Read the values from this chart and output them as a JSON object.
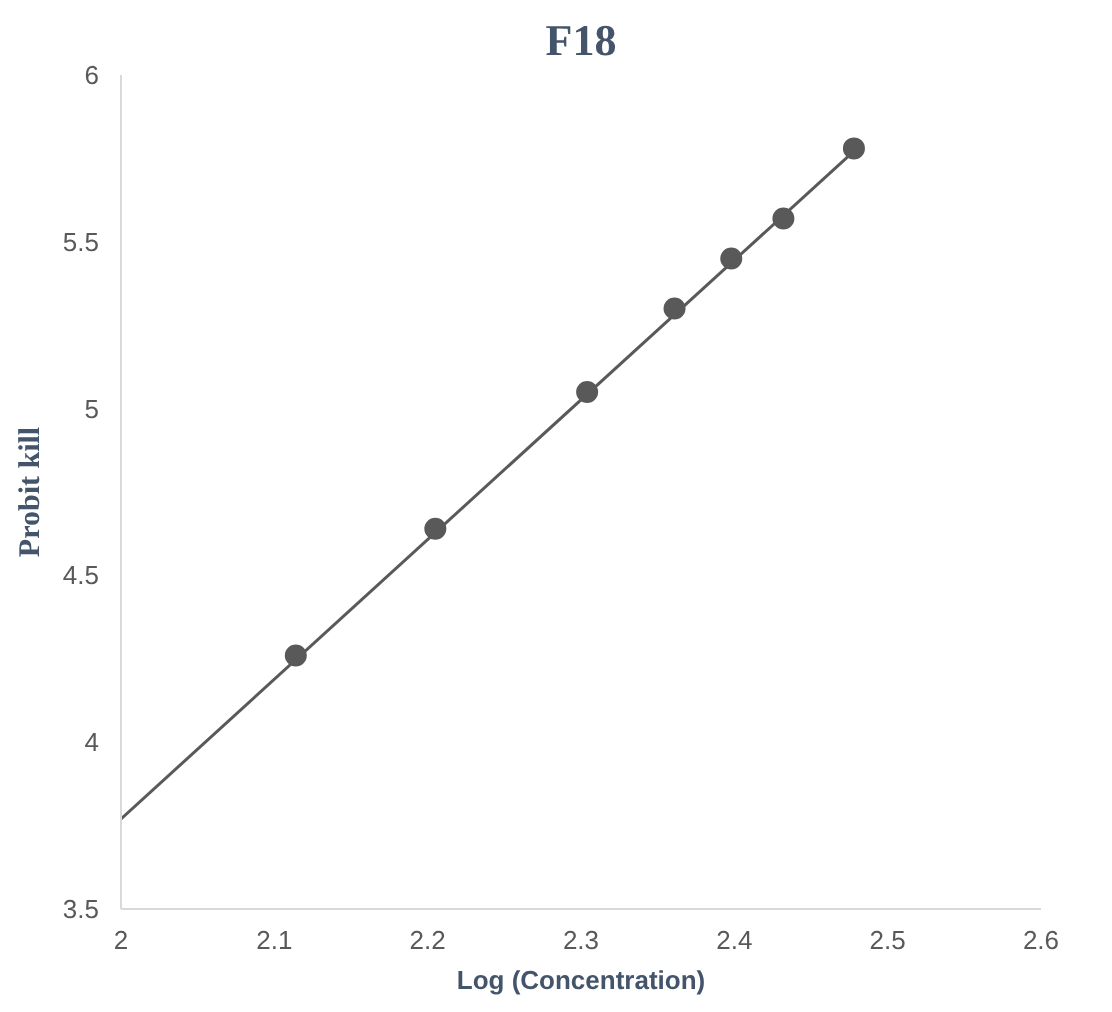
{
  "chart_data": {
    "type": "scatter",
    "title": "F18",
    "xlabel": "Log (Concentration)",
    "ylabel": "Probit kill",
    "x": [
      2.114,
      2.205,
      2.304,
      2.361,
      2.398,
      2.432,
      2.478
    ],
    "series": [
      {
        "color": "#595959",
        "values": [
          4.26,
          4.64,
          5.05,
          5.3,
          5.45,
          5.57,
          5.78
        ],
        "marker": "circle"
      },
      {
        "type": "line",
        "color": "#595959",
        "x": [
          2,
          2.48
        ],
        "values": [
          3.77,
          5.78
        ],
        "line_style": "solid"
      }
    ],
    "xlim": [
      2,
      2.6
    ],
    "xticks": [
      2,
      2.1,
      2.2,
      2.3,
      2.4,
      2.5,
      2.6
    ],
    "ylim": [
      3.5,
      6
    ],
    "yticks": [
      3.5,
      4,
      4.5,
      5,
      5.5,
      6
    ],
    "grid": false
  }
}
